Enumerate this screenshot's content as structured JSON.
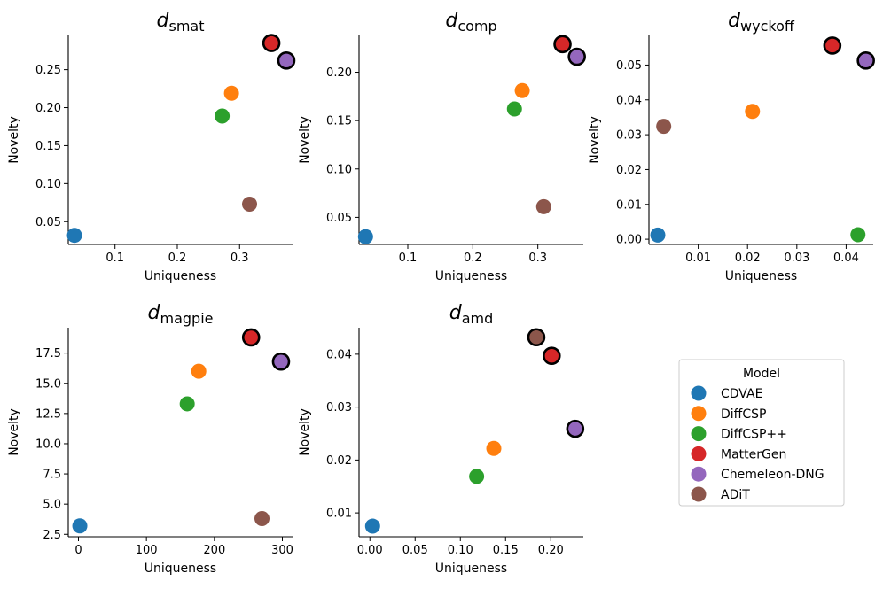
{
  "figure": {
    "legend": {
      "title": "Model",
      "placement": "right, below top row",
      "entries": [
        {
          "name": "CDVAE",
          "color": "#1f77b4"
        },
        {
          "name": "DiffCSP",
          "color": "#ff7f0e"
        },
        {
          "name": "DiffCSP++",
          "color": "#2ca02c"
        },
        {
          "name": "MatterGen",
          "color": "#d62728"
        },
        {
          "name": "Chemeleon-DNG",
          "color": "#9467bd"
        },
        {
          "name": "ADiT",
          "color": "#8c564b"
        }
      ]
    },
    "highlight_note_color": "#000000"
  },
  "chart_data": [
    {
      "type": "scatter",
      "title_main": "d",
      "title_sub": "smat",
      "xlabel": "Uniqueness",
      "ylabel": "Novelty",
      "xlim": [
        0.025,
        0.385
      ],
      "ylim": [
        0.02,
        0.295
      ],
      "xticks": [
        0.1,
        0.2,
        0.3
      ],
      "xtick_labels": [
        "0.1",
        "0.2",
        "0.3"
      ],
      "yticks": [
        0.05,
        0.1,
        0.15,
        0.2,
        0.25
      ],
      "ytick_labels": [
        "0.05",
        "0.10",
        "0.15",
        "0.20",
        "0.25"
      ],
      "points": [
        {
          "model": "CDVAE",
          "x": 0.035,
          "y": 0.032,
          "highlight": false
        },
        {
          "model": "DiffCSP",
          "x": 0.287,
          "y": 0.219,
          "highlight": false
        },
        {
          "model": "DiffCSP++",
          "x": 0.272,
          "y": 0.189,
          "highlight": false
        },
        {
          "model": "MatterGen",
          "x": 0.351,
          "y": 0.285,
          "highlight": true
        },
        {
          "model": "Chemeleon-DNG",
          "x": 0.375,
          "y": 0.262,
          "highlight": true
        },
        {
          "model": "ADiT",
          "x": 0.316,
          "y": 0.073,
          "highlight": false
        }
      ]
    },
    {
      "type": "scatter",
      "title_main": "d",
      "title_sub": "comp",
      "xlabel": "Uniqueness",
      "ylabel": "Novelty",
      "xlim": [
        0.025,
        0.37
      ],
      "ylim": [
        0.022,
        0.238
      ],
      "xticks": [
        0.1,
        0.2,
        0.3
      ],
      "xtick_labels": [
        "0.1",
        "0.2",
        "0.3"
      ],
      "yticks": [
        0.05,
        0.1,
        0.15,
        0.2
      ],
      "ytick_labels": [
        "0.05",
        "0.10",
        "0.15",
        "0.20"
      ],
      "points": [
        {
          "model": "CDVAE",
          "x": 0.035,
          "y": 0.03,
          "highlight": false
        },
        {
          "model": "DiffCSP",
          "x": 0.276,
          "y": 0.181,
          "highlight": false
        },
        {
          "model": "DiffCSP++",
          "x": 0.264,
          "y": 0.162,
          "highlight": false
        },
        {
          "model": "MatterGen",
          "x": 0.338,
          "y": 0.229,
          "highlight": true
        },
        {
          "model": "Chemeleon-DNG",
          "x": 0.36,
          "y": 0.216,
          "highlight": true
        },
        {
          "model": "ADiT",
          "x": 0.309,
          "y": 0.061,
          "highlight": false
        }
      ]
    },
    {
      "type": "scatter",
      "title_main": "d",
      "title_sub": "wyckoff",
      "xlabel": "Uniqueness",
      "ylabel": "Novelty",
      "xlim": [
        0.0,
        0.0455
      ],
      "ylim": [
        -0.0015,
        0.0585
      ],
      "xticks": [
        0.01,
        0.02,
        0.03,
        0.04
      ],
      "xtick_labels": [
        "0.01",
        "0.02",
        "0.03",
        "0.04"
      ],
      "yticks": [
        0.0,
        0.01,
        0.02,
        0.03,
        0.04,
        0.05
      ],
      "ytick_labels": [
        "0.00",
        "0.01",
        "0.02",
        "0.03",
        "0.04",
        "0.05"
      ],
      "points": [
        {
          "model": "CDVAE",
          "x": 0.0018,
          "y": 0.0012,
          "highlight": false
        },
        {
          "model": "DiffCSP",
          "x": 0.021,
          "y": 0.0367,
          "highlight": false
        },
        {
          "model": "DiffCSP++",
          "x": 0.0424,
          "y": 0.0013,
          "highlight": false
        },
        {
          "model": "MatterGen",
          "x": 0.0372,
          "y": 0.0556,
          "highlight": true
        },
        {
          "model": "Chemeleon-DNG",
          "x": 0.044,
          "y": 0.0513,
          "highlight": true
        },
        {
          "model": "ADiT",
          "x": 0.003,
          "y": 0.0324,
          "highlight": false
        }
      ]
    },
    {
      "type": "scatter",
      "title_main": "d",
      "title_sub": "magpie",
      "xlabel": "Uniqueness",
      "ylabel": "Novelty",
      "xlim": [
        -15,
        315
      ],
      "ylim": [
        2.3,
        19.6
      ],
      "xticks": [
        0,
        100,
        200,
        300
      ],
      "xtick_labels": [
        "0",
        "100",
        "200",
        "300"
      ],
      "yticks": [
        2.5,
        5.0,
        7.5,
        10.0,
        12.5,
        15.0,
        17.5
      ],
      "ytick_labels": [
        "2.5",
        "5.0",
        "7.5",
        "10.0",
        "12.5",
        "15.0",
        "17.5"
      ],
      "points": [
        {
          "model": "CDVAE",
          "x": 2,
          "y": 3.2,
          "highlight": false
        },
        {
          "model": "DiffCSP",
          "x": 177,
          "y": 16.0,
          "highlight": false
        },
        {
          "model": "DiffCSP++",
          "x": 160,
          "y": 13.3,
          "highlight": false
        },
        {
          "model": "MatterGen",
          "x": 254,
          "y": 18.8,
          "highlight": true
        },
        {
          "model": "Chemeleon-DNG",
          "x": 298,
          "y": 16.8,
          "highlight": true
        },
        {
          "model": "ADiT",
          "x": 270,
          "y": 3.8,
          "highlight": false
        }
      ]
    },
    {
      "type": "scatter",
      "title_main": "d",
      "title_sub": "amd",
      "xlabel": "Uniqueness",
      "ylabel": "Novelty",
      "xlim": [
        -0.012,
        0.236
      ],
      "ylim": [
        0.0055,
        0.045
      ],
      "xticks": [
        0.0,
        0.05,
        0.1,
        0.15,
        0.2
      ],
      "xtick_labels": [
        "0.00",
        "0.05",
        "0.10",
        "0.15",
        "0.20"
      ],
      "yticks": [
        0.01,
        0.02,
        0.03,
        0.04
      ],
      "ytick_labels": [
        "0.01",
        "0.02",
        "0.03",
        "0.04"
      ],
      "points": [
        {
          "model": "CDVAE",
          "x": 0.003,
          "y": 0.0075,
          "highlight": false
        },
        {
          "model": "DiffCSP",
          "x": 0.137,
          "y": 0.0222,
          "highlight": false
        },
        {
          "model": "DiffCSP++",
          "x": 0.118,
          "y": 0.0169,
          "highlight": false
        },
        {
          "model": "MatterGen",
          "x": 0.201,
          "y": 0.0397,
          "highlight": true
        },
        {
          "model": "Chemeleon-DNG",
          "x": 0.227,
          "y": 0.0259,
          "highlight": true
        },
        {
          "model": "ADiT",
          "x": 0.184,
          "y": 0.0432,
          "highlight": true
        }
      ]
    }
  ]
}
